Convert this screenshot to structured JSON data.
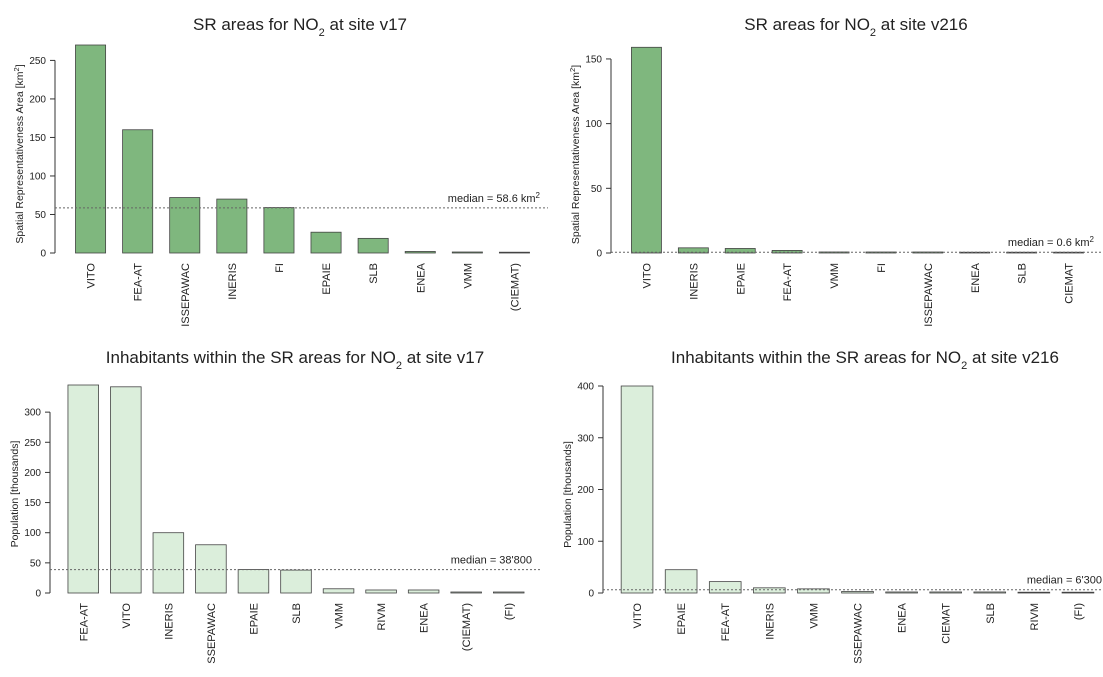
{
  "chart_data": [
    {
      "type": "bar",
      "title": "SR areas for NO₂ at site v17",
      "ylabel": "Spatial Representativeness Area [km²]",
      "xlabel": "",
      "categories": [
        "VITO",
        "FEA-AT",
        "ISSEPAWAC",
        "INERIS",
        "FI",
        "EPAIE",
        "SLB",
        "ENEA",
        "VMM",
        "(CIEMAT)"
      ],
      "values": [
        270,
        160,
        72,
        70,
        59,
        27,
        19,
        2,
        1,
        0
      ],
      "ylim": [
        0,
        270
      ],
      "yticks": [
        0,
        50,
        100,
        150,
        200,
        250
      ],
      "median": 58.6,
      "median_label": "median =  58.6 km²",
      "bar_color": "#7fb77e",
      "grid": false
    },
    {
      "type": "bar",
      "title": "SR areas for NO₂ at site v216",
      "ylabel": "Spatial Representativeness Area [km²]",
      "xlabel": "",
      "categories": [
        "VITO",
        "INERIS",
        "EPAIE",
        "FEA-AT",
        "VMM",
        "FI",
        "ISSEPAWAC",
        "ENEA",
        "SLB",
        "CIEMAT"
      ],
      "values": [
        159,
        4,
        3.5,
        2,
        0.8,
        0.6,
        0.3,
        0,
        0,
        0
      ],
      "ylim": [
        0,
        160
      ],
      "yticks": [
        0,
        50,
        100,
        150
      ],
      "median": 0.6,
      "median_label": "median =  0.6 km²",
      "bar_color": "#7fb77e",
      "grid": false
    },
    {
      "type": "bar",
      "title": "Inhabitants within the SR areas for NO₂ at site v17",
      "ylabel": "Population [thousands]",
      "xlabel": "",
      "categories": [
        "FEA-AT",
        "VITO",
        "INERIS",
        "SSEPAWAC",
        "EPAIE",
        "SLB",
        "VMM",
        "RIVM",
        "ENEA",
        "(CIEMAT)",
        "(FI)"
      ],
      "values": [
        345,
        342,
        100,
        80,
        39,
        38,
        7,
        5,
        5,
        1,
        1
      ],
      "ylim": [
        0,
        345
      ],
      "yticks": [
        0,
        50,
        100,
        150,
        200,
        250,
        300
      ],
      "median": 38.8,
      "median_label": "median = 38'800",
      "bar_color": "#dbeedb",
      "grid": false
    },
    {
      "type": "bar",
      "title": "Inhabitants within the SR areas for NO₂ at site v216",
      "ylabel": "Population [thousands]",
      "xlabel": "",
      "categories": [
        "VITO",
        "EPAIE",
        "FEA-AT",
        "INERIS",
        "VMM",
        "SSEPAWAC",
        "ENEA",
        "CIEMAT",
        "SLB",
        "RIVM",
        "(FI)"
      ],
      "values": [
        400,
        45,
        22,
        10,
        8,
        3,
        2,
        2,
        2,
        0,
        0
      ],
      "ylim": [
        0,
        400
      ],
      "yticks": [
        0,
        100,
        200,
        300,
        400
      ],
      "median": 6.3,
      "median_label": "median = 6'300",
      "bar_color": "#dbeedb",
      "grid": false
    }
  ]
}
